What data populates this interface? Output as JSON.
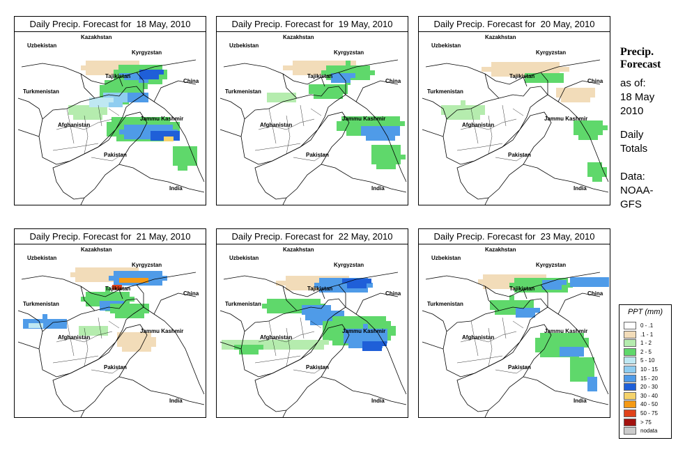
{
  "panels": [
    {
      "title": "Daily Precip. Forecast for  18 May, 2010",
      "pattern": 0
    },
    {
      "title": "Daily Precip. Forecast for  19 May, 2010",
      "pattern": 1
    },
    {
      "title": "Daily Precip. Forecast for  20 May, 2010",
      "pattern": 2
    },
    {
      "title": "Daily Precip. Forecast for  21 May, 2010",
      "pattern": 3
    },
    {
      "title": "Daily Precip. Forecast for  22 May, 2010",
      "pattern": 4
    },
    {
      "title": "Daily Precip. Forecast for  23 May, 2010",
      "pattern": 5
    }
  ],
  "map_labels": {
    "kazakhstan": "Kazakhstan",
    "uzbekistan": "Uzbekistan",
    "kyrgyzstan": "Kyrgyzstan",
    "tajikistan": "Tajikistan",
    "turkmenistan": "Turkmenistan",
    "china": "China",
    "afghanistan": "Afghanistan",
    "jammu_kashmir": "Jammu Kashmir",
    "pakistan": "Pakistan",
    "india": "India"
  },
  "side": {
    "title_line1": "Precip.",
    "title_line2": "Forecast",
    "asof_line1": "as of:",
    "asof_line2": "18 May",
    "asof_line3": "2010",
    "totals_line1": "Daily",
    "totals_line2": "Totals",
    "data_line1": "Data:",
    "data_line2": "NOAA-",
    "data_line3": "GFS"
  },
  "legend": {
    "title": "PPT (mm)",
    "items": [
      {
        "label": "0 - .1",
        "color": "#ffffff"
      },
      {
        "label": ".1 - 1",
        "color": "#f2dcb9"
      },
      {
        "label": "1 - 2",
        "color": "#b5ecae"
      },
      {
        "label": "2 - 5",
        "color": "#5fd86b"
      },
      {
        "label": "5 - 10",
        "color": "#bfe8f2"
      },
      {
        "label": "10 - 15",
        "color": "#8fcdf0"
      },
      {
        "label": "15 - 20",
        "color": "#4f9be8"
      },
      {
        "label": "20 - 30",
        "color": "#1f5fd8"
      },
      {
        "label": "30 - 40",
        "color": "#f5d36b"
      },
      {
        "label": "40 - 50",
        "color": "#f59a15"
      },
      {
        "label": "50 - 75",
        "color": "#e0421a"
      },
      {
        "label": "> 75",
        "color": "#a3120f"
      },
      {
        "label": "nodata",
        "color": "#cccccc"
      }
    ]
  }
}
